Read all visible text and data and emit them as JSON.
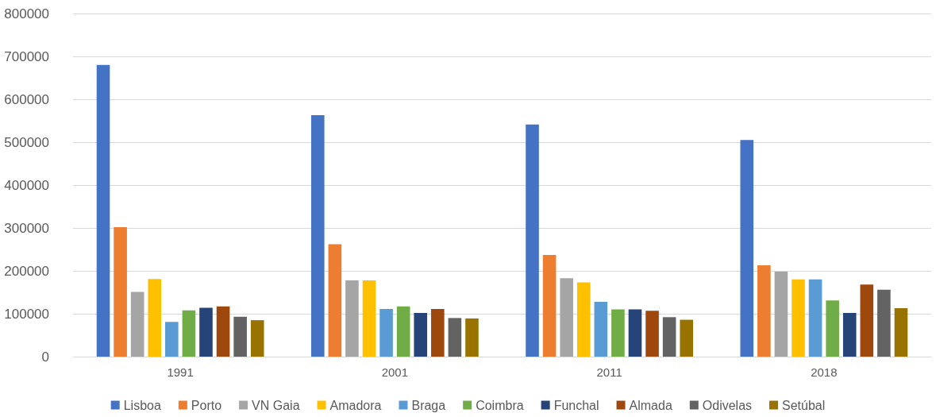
{
  "chart_data": {
    "type": "bar",
    "categories": [
      "1991",
      "2001",
      "2011",
      "2018"
    ],
    "series": [
      {
        "name": "Lisboa",
        "color": "#4472c4",
        "values": [
          680000,
          563000,
          541000,
          505000
        ]
      },
      {
        "name": "Porto",
        "color": "#ed7d31",
        "values": [
          302000,
          262000,
          237000,
          213000
        ]
      },
      {
        "name": "VN Gaia",
        "color": "#a5a5a5",
        "values": [
          151000,
          178000,
          183000,
          198000
        ]
      },
      {
        "name": "Amadora",
        "color": "#ffc000",
        "values": [
          181000,
          178000,
          173000,
          180000
        ]
      },
      {
        "name": "Braga",
        "color": "#5b9bd5",
        "values": [
          81000,
          111000,
          128000,
          180000
        ]
      },
      {
        "name": "Coimbra",
        "color": "#70ad47",
        "values": [
          108000,
          117000,
          110000,
          131000
        ]
      },
      {
        "name": "Funchal",
        "color": "#264478",
        "values": [
          114000,
          102000,
          110000,
          102000
        ]
      },
      {
        "name": "Almada",
        "color": "#9e480e",
        "values": [
          117000,
          111000,
          107000,
          168000
        ]
      },
      {
        "name": "Odivelas",
        "color": "#636363",
        "values": [
          93000,
          90000,
          92000,
          156000
        ]
      },
      {
        "name": "Setúbal",
        "color": "#997300",
        "values": [
          85000,
          89000,
          86000,
          113000
        ]
      }
    ],
    "ylim": [
      0,
      800000
    ],
    "yticks": [
      0,
      100000,
      200000,
      300000,
      400000,
      500000,
      600000,
      700000,
      800000
    ],
    "grid": true,
    "legend": "bottom"
  }
}
